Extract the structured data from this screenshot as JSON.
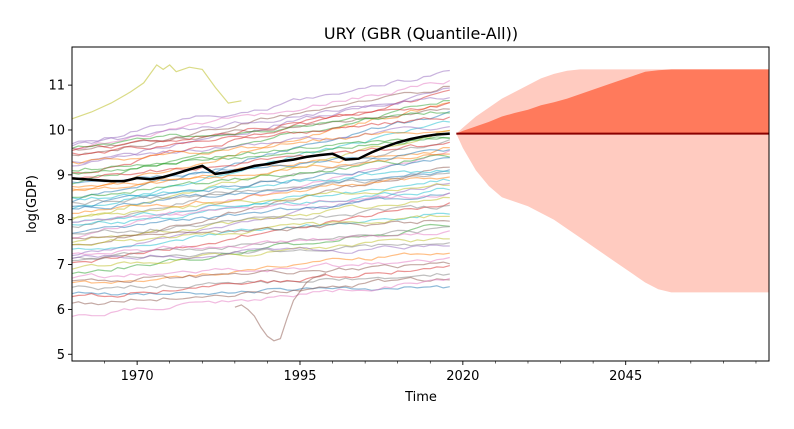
{
  "chart_data": {
    "type": "line",
    "title": "URY (GBR (Quantile-All))",
    "xlabel": "Time",
    "ylabel": "log(GDP)",
    "xlim": [
      1960,
      2067
    ],
    "ylim": [
      4.85,
      11.85
    ],
    "xticks": [
      1970,
      1995,
      2020,
      2045
    ],
    "xtick_labels": [
      "1970",
      "1995",
      "2020",
      "2045"
    ],
    "yticks": [
      5,
      6,
      7,
      8,
      9,
      10,
      11
    ],
    "ytick_labels": [
      "5",
      "6",
      "7",
      "8",
      "9",
      "10",
      "11"
    ],
    "grid": false,
    "legend": "none",
    "colors": {
      "highlight": "#000000",
      "forecast_median": "#8b0000",
      "inner_band": "#ff7a5c",
      "outer_band": "#ffcbc0",
      "background_palette": [
        "#1f77b4",
        "#ff7f0e",
        "#2ca02c",
        "#d62728",
        "#9467bd",
        "#8c564b",
        "#e377c2",
        "#7f7f7f",
        "#bcbd22",
        "#17becf"
      ]
    },
    "background_series": {
      "years": [
        1960,
        2018
      ],
      "starts": [
        6.35,
        6.55,
        6.8,
        7.0,
        7.2,
        7.4,
        7.6,
        7.8,
        8.0,
        8.2,
        8.4,
        8.6,
        8.8,
        9.0,
        9.2,
        9.4,
        9.6,
        6.45,
        6.9,
        7.3,
        7.7,
        8.1,
        8.5,
        8.9,
        9.3,
        9.55,
        6.7,
        7.1,
        7.5,
        7.9,
        8.3,
        8.7,
        9.1,
        9.45,
        9.65,
        6.1,
        5.85,
        7.05,
        7.45,
        7.85,
        8.25,
        8.65,
        9.05,
        9.5,
        9.7,
        6.6,
        7.25,
        7.65,
        8.05,
        8.45,
        8.85,
        9.25,
        9.6,
        6.25,
        7.15,
        7.55,
        7.95,
        8.35
      ],
      "ends": [
        6.5,
        7.3,
        7.9,
        8.4,
        8.8,
        9.2,
        9.5,
        9.8,
        10.0,
        10.2,
        10.4,
        10.6,
        10.7,
        10.8,
        10.9,
        11.0,
        11.1,
        6.8,
        7.6,
        8.2,
        8.6,
        9.0,
        9.4,
        9.7,
        10.1,
        10.5,
        7.1,
        7.8,
        8.5,
        8.9,
        9.3,
        9.6,
        9.9,
        10.3,
        10.75,
        6.7,
        6.65,
        7.5,
        8.1,
        8.7,
        9.1,
        9.45,
        9.85,
        10.6,
        11.3,
        7.0,
        7.7,
        8.3,
        8.8,
        9.15,
        9.55,
        10.05,
        10.45,
        6.95,
        7.4,
        8.0,
        8.6,
        9.0
      ]
    },
    "outlier_series": {
      "years": [
        1960,
        1963,
        1966,
        1969,
        1971,
        1972,
        1973,
        1974,
        1975,
        1976,
        1978,
        1980,
        1982,
        1984,
        1986
      ],
      "values": [
        10.25,
        10.4,
        10.6,
        10.85,
        11.05,
        11.25,
        11.45,
        11.35,
        11.45,
        11.3,
        11.4,
        11.35,
        10.95,
        10.6,
        10.65
      ]
    },
    "crisis_series": {
      "years": [
        1985,
        1986,
        1987,
        1988,
        1989,
        1990,
        1991,
        1992,
        1993,
        1994,
        1995,
        1996,
        1997,
        1998,
        1999
      ],
      "values": [
        6.05,
        6.1,
        6.0,
        5.85,
        5.6,
        5.4,
        5.3,
        5.35,
        5.8,
        6.2,
        6.4,
        6.6,
        6.7,
        6.75,
        6.8
      ]
    },
    "series": [
      {
        "x": [
          1960,
          1962,
          1964,
          1966,
          1968,
          1970,
          1972,
          1974,
          1976,
          1978,
          1980,
          1982,
          1984,
          1986,
          1988,
          1990,
          1992,
          1994,
          1996,
          1998,
          2000,
          2002,
          2004,
          2006,
          2008,
          2010,
          2012,
          2014,
          2016,
          2018
        ],
        "y": [
          8.92,
          8.9,
          8.88,
          8.86,
          8.86,
          8.93,
          8.9,
          8.95,
          9.03,
          9.12,
          9.2,
          9.02,
          9.06,
          9.12,
          9.2,
          9.24,
          9.3,
          9.34,
          9.4,
          9.44,
          9.47,
          9.34,
          9.36,
          9.5,
          9.62,
          9.72,
          9.8,
          9.86,
          9.9,
          9.92
        ]
      }
    ],
    "forecast": {
      "x": [
        2019,
        2020,
        2022,
        2024,
        2026,
        2028,
        2030,
        2032,
        2034,
        2036,
        2038,
        2040,
        2042,
        2044,
        2046,
        2048,
        2050,
        2052,
        2054,
        2056,
        2058,
        2060,
        2062,
        2064,
        2067
      ],
      "median": 9.92,
      "inner_upper": [
        9.92,
        9.98,
        10.08,
        10.18,
        10.3,
        10.38,
        10.45,
        10.55,
        10.62,
        10.7,
        10.8,
        10.9,
        11.0,
        11.1,
        11.2,
        11.3,
        11.33,
        11.35,
        11.35,
        11.35,
        11.35,
        11.35,
        11.35,
        11.35,
        11.35
      ],
      "inner_lower": [
        9.92,
        9.92,
        9.92,
        9.92,
        9.92,
        9.92,
        9.92,
        9.92,
        9.92,
        9.92,
        9.92,
        9.92,
        9.92,
        9.92,
        9.92,
        9.92,
        9.92,
        9.92,
        9.92,
        9.92,
        9.92,
        9.92,
        9.92,
        9.92,
        9.92
      ],
      "outer_upper": [
        9.92,
        10.05,
        10.3,
        10.5,
        10.7,
        10.85,
        11.0,
        11.15,
        11.25,
        11.32,
        11.35,
        11.35,
        11.35,
        11.35,
        11.35,
        11.35,
        11.35,
        11.35,
        11.35,
        11.35,
        11.35,
        11.35,
        11.35,
        11.35,
        11.35
      ],
      "outer_lower": [
        9.92,
        9.6,
        9.1,
        8.75,
        8.5,
        8.4,
        8.3,
        8.15,
        8.0,
        7.8,
        7.6,
        7.4,
        7.2,
        7.0,
        6.8,
        6.6,
        6.45,
        6.38,
        6.38,
        6.38,
        6.38,
        6.38,
        6.38,
        6.38,
        6.38
      ]
    }
  }
}
